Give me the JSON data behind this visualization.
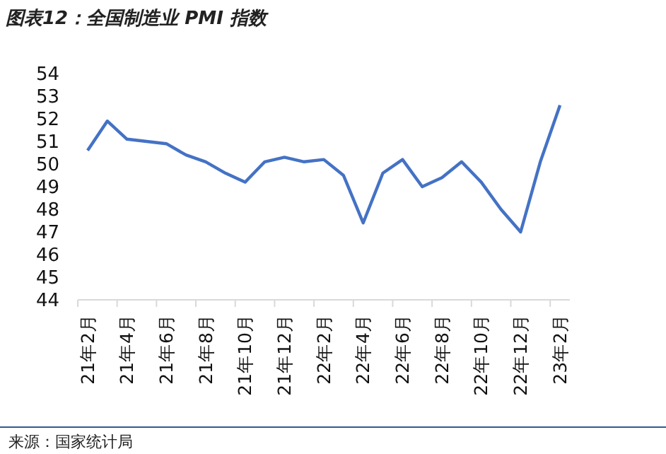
{
  "chart_data": {
    "type": "line",
    "title": "图表12：全国制造业 PMI 指数",
    "categories": [
      "21年2月",
      null,
      "21年4月",
      null,
      "21年6月",
      null,
      "21年8月",
      null,
      "21年10月",
      null,
      "21年12月",
      null,
      "22年2月",
      null,
      "22年4月",
      null,
      "22年6月",
      null,
      "22年8月",
      null,
      "22年10月",
      null,
      "22年12月",
      null,
      "23年2月"
    ],
    "series": [
      {
        "color": "#4472c4",
        "values": [
          50.6,
          51.9,
          51.1,
          51.0,
          50.9,
          50.4,
          50.1,
          49.6,
          49.2,
          50.1,
          50.3,
          50.1,
          50.2,
          49.5,
          47.4,
          49.6,
          50.2,
          49.0,
          49.4,
          50.1,
          49.2,
          48.0,
          47.0,
          50.1,
          52.6
        ]
      }
    ],
    "ylim": [
      44,
      54
    ],
    "yticks": [
      44,
      45,
      46,
      47,
      48,
      49,
      50,
      51,
      52,
      53,
      54
    ],
    "grid": false,
    "marker": "none",
    "line_style": "solid",
    "annotations": [
      "来源：国家统计局"
    ]
  }
}
